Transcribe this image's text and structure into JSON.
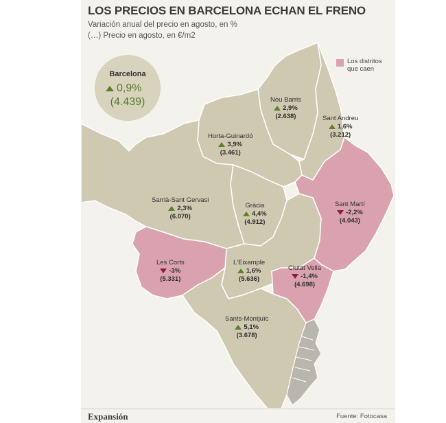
{
  "title": "LOS PRECIOS EN BARCELONA ECHAN EL FRENO",
  "subtitle_1": "Variación anual del precio en agosto, en %",
  "subtitle_2": "(…) Precio en agosto, en €/m2",
  "city": {
    "name": "Barcelona",
    "change": "0,9%",
    "price": "(4.439)",
    "trend": "up"
  },
  "legend": {
    "label": "Los distritos que caen",
    "color": "#d9a2ae"
  },
  "colors": {
    "district_fill": "#cfc9b2",
    "falling_fill": "#d9a2ae",
    "border": "#ffffff",
    "up_arrow": "#5f7f28",
    "down_arrow": "#8b1e3a",
    "port": "#a7a59c"
  },
  "districts": [
    {
      "name": "Nou Barris",
      "change": "2,9%",
      "price": "(2.638)",
      "trend": "up"
    },
    {
      "name": "Sant Andreu",
      "change": "1,6%",
      "price": "(3.212)",
      "trend": "up"
    },
    {
      "name": "Horta-Guinardó",
      "change": "3,9%",
      "price": "(3.461)",
      "trend": "up"
    },
    {
      "name": "Sarrià-Sant Gervasi",
      "change": "2,3%",
      "price": "(6.070)",
      "trend": "up"
    },
    {
      "name": "Gràcia",
      "change": "4,4%",
      "price": "(4.912)",
      "trend": "up"
    },
    {
      "name": "Sant Martí",
      "change": "-2,2%",
      "price": "(4.043)",
      "trend": "down"
    },
    {
      "name": "Les Corts",
      "change": "-3%",
      "price": "(5.331)",
      "trend": "down"
    },
    {
      "name": "L'Eixample",
      "change": "1,6%",
      "price": "(5.636)",
      "trend": "up"
    },
    {
      "name": "Ciutat Vella",
      "change": "-1,4%",
      "price": "(4.698)",
      "trend": "down"
    },
    {
      "name": "Sants-Montjuïc",
      "change": "5,1%",
      "price": "(3.678)",
      "trend": "up"
    }
  ],
  "footer": {
    "brand": "Expansión",
    "source": "Fuente: Fotocasa"
  }
}
